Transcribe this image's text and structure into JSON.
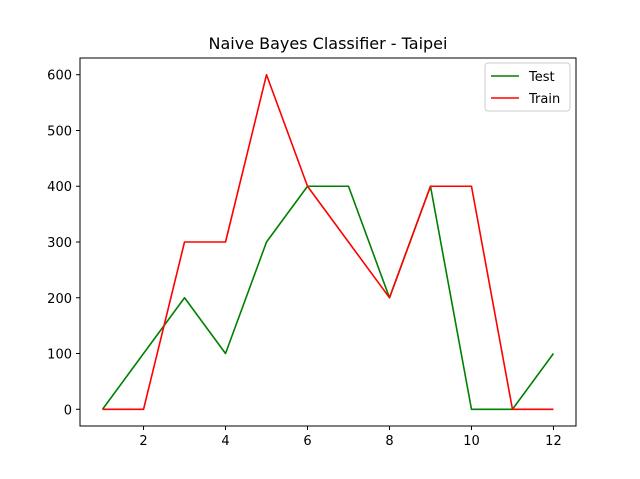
{
  "chart_data": {
    "type": "line",
    "title": "Naive Bayes Classifier - Taipei",
    "xlabel": "",
    "ylabel": "",
    "x": [
      1,
      2,
      3,
      4,
      5,
      6,
      7,
      8,
      9,
      10,
      11,
      12
    ],
    "xlim": [
      0.45,
      12.55
    ],
    "ylim": [
      -30,
      630
    ],
    "xticks": [
      2,
      4,
      6,
      8,
      10,
      12
    ],
    "yticks": [
      0,
      100,
      200,
      300,
      400,
      500,
      600
    ],
    "grid": false,
    "legend_position": "top-right",
    "series": [
      {
        "name": "Test",
        "color": "#008000",
        "values": [
          0,
          100,
          200,
          100,
          300,
          400,
          400,
          200,
          400,
          0,
          0,
          100
        ]
      },
      {
        "name": "Train",
        "color": "#ff0000",
        "values": [
          0,
          0,
          300,
          300,
          600,
          400,
          300,
          200,
          400,
          400,
          0,
          0
        ]
      }
    ]
  }
}
